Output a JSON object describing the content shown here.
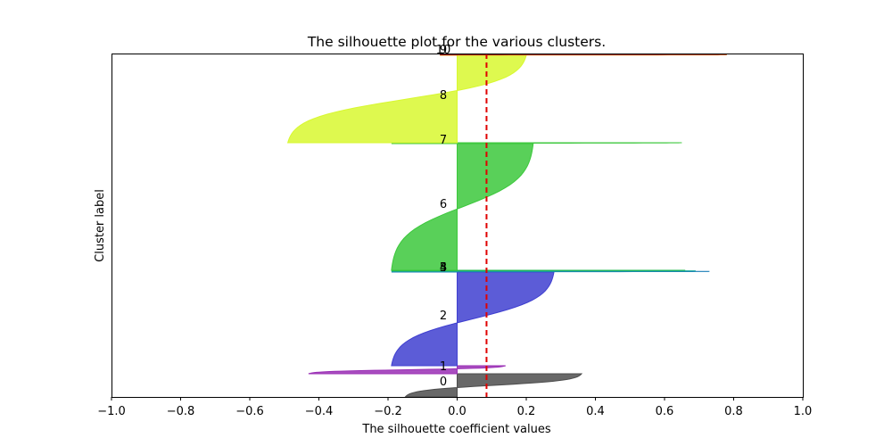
{
  "chart_data": {
    "type": "area",
    "title": "The silhouette plot for the various clusters.",
    "xlabel": "The silhouette coefficient values",
    "ylabel": "Cluster label",
    "xlim": [
      -1.0,
      1.0
    ],
    "x_ticks": [
      "−1.0",
      "−0.8",
      "−0.6",
      "−0.4",
      "−0.2",
      "0.0",
      "0.2",
      "0.4",
      "0.6",
      "0.8",
      "1.0"
    ],
    "x_tick_values": [
      -1.0,
      -0.8,
      -0.6,
      -0.4,
      -0.2,
      0.0,
      0.2,
      0.4,
      0.6,
      0.8,
      1.0
    ],
    "average_silhouette_score": 0.085,
    "grid": false,
    "clusters": [
      {
        "label": "0",
        "color": "#4d4d4d",
        "min": -0.15,
        "max": 0.36
      },
      {
        "label": "1",
        "color": "#9a2fb5",
        "min": -0.43,
        "max": 0.14
      },
      {
        "label": "2",
        "color": "#3f3fd0",
        "min": -0.19,
        "max": 0.28
      },
      {
        "label": "3",
        "color": "#1a7fb8",
        "min": -0.19,
        "max": 0.73
      },
      {
        "label": "4",
        "color": "#19a89a",
        "min": -0.19,
        "max": 0.69
      },
      {
        "label": "5",
        "color": "#22b84e",
        "min": -0.19,
        "max": 0.66
      },
      {
        "label": "6",
        "color": "#3cc83c",
        "min": -0.19,
        "max": 0.22
      },
      {
        "label": "7",
        "color": "#3ec83e",
        "min": -0.19,
        "max": 0.65
      },
      {
        "label": "8",
        "color": "#d8f830",
        "min": -0.49,
        "max": 0.2
      },
      {
        "label": "9",
        "color": "#e8a020",
        "min": -0.05,
        "max": 0.78
      },
      {
        "label": "10",
        "color": "#a01818",
        "min": -0.05,
        "max": 0.78
      }
    ]
  }
}
